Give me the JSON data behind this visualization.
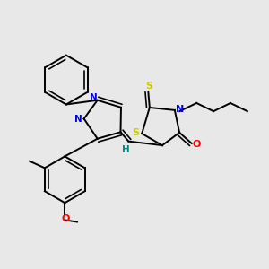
{
  "background_color": "#e8e8e8",
  "atom_colors": {
    "N": "#0000ee",
    "O": "#ff0000",
    "S": "#cccc00",
    "C": "#000000",
    "H": "#008888"
  },
  "bond_color": "#000000",
  "figsize": [
    3.0,
    3.0
  ],
  "dpi": 100
}
